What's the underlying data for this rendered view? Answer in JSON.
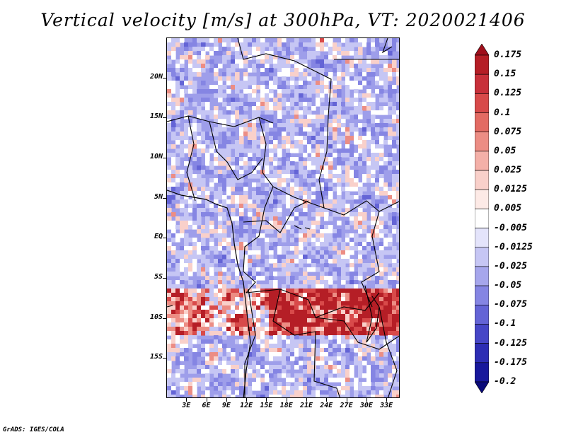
{
  "title": "Vertical velocity [m/s] at 300hPa, VT: 2020021406",
  "footer": "GrADS: IGES/COLA",
  "map": {
    "lat_range": [
      -20,
      25
    ],
    "lon_range": [
      0,
      35
    ],
    "lat_labels": [
      "20N",
      "15N",
      "10N",
      "5N",
      "EQ",
      "5S",
      "10S",
      "15S"
    ],
    "lat_values": [
      20,
      15,
      10,
      5,
      0,
      -5,
      -10,
      -15
    ],
    "lon_labels": [
      "3E",
      "6E",
      "9E",
      "12E",
      "15E",
      "18E",
      "21E",
      "24E",
      "27E",
      "30E",
      "33E"
    ],
    "lon_values": [
      3,
      6,
      9,
      12,
      15,
      18,
      21,
      24,
      27,
      30,
      33
    ]
  },
  "colorbar": {
    "levels": [
      "0.175",
      "0.15",
      "0.125",
      "0.1",
      "0.075",
      "0.05",
      "0.025",
      "0.0125",
      "0.005",
      "-0.005",
      "-0.0125",
      "-0.025",
      "-0.05",
      "-0.075",
      "-0.1",
      "-0.125",
      "-0.175",
      "-0.2"
    ],
    "colors": [
      "#a00f1c",
      "#b51e26",
      "#c8303a",
      "#d84a4a",
      "#e36b63",
      "#ec8d84",
      "#f4b0a8",
      "#f9d0ca",
      "#fdeae6",
      "#ffffff",
      "#e4e4fb",
      "#c6c6f4",
      "#a6a6ec",
      "#8585e3",
      "#6464d6",
      "#4646c7",
      "#2d2db4",
      "#18189c",
      "#0a0a7a"
    ]
  },
  "colors": {
    "base": "#9e9eea",
    "border": "#000000"
  }
}
